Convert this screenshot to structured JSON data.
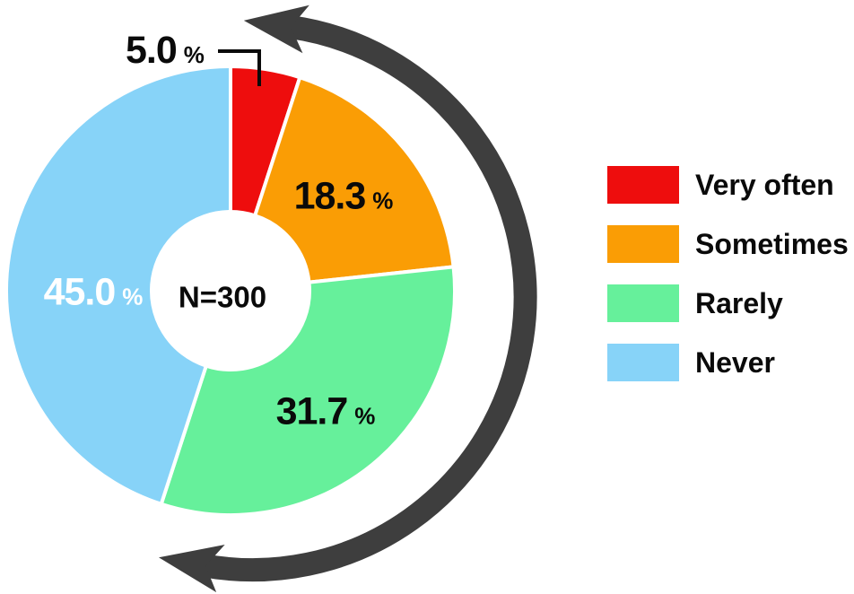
{
  "chart_data": {
    "type": "pie",
    "subtype": "donut",
    "title": "",
    "categories": [
      "Very often",
      "Sometimes",
      "Rarely",
      "Never"
    ],
    "values": [
      5.0,
      18.3,
      31.7,
      45.0
    ],
    "unit_symbol": "%",
    "center_label": "N=300",
    "sample_size": 300,
    "start_angle_deg": 0,
    "direction": "clockwise",
    "legend_position": "right",
    "grid": false,
    "annotations": {
      "callout": "5.0% label placed outside the donut with an elbow leader line into the red slice",
      "arrow": "thick dark-gray double-headed arrow arcing clockwise around the right side of the donut"
    },
    "slices": [
      {
        "label": "Very often",
        "value": 5.0,
        "display": "5.0",
        "color": "#EE0D0D",
        "label_color": "#0A0A0A",
        "label_placement": "outside-top"
      },
      {
        "label": "Sometimes",
        "value": 18.3,
        "display": "18.3",
        "color": "#FA9D05",
        "label_color": "#0A0A0A",
        "label_placement": "inside"
      },
      {
        "label": "Rarely",
        "value": 31.7,
        "display": "31.7",
        "color": "#66F09B",
        "label_color": "#0A0A0A",
        "label_placement": "inside"
      },
      {
        "label": "Never",
        "value": 45.0,
        "display": "45.0",
        "color": "#87D3F8",
        "label_color": "#FFFFFF",
        "label_placement": "inside"
      }
    ],
    "colors": {
      "arrow": "#3E3E3E",
      "leader_line": "#0A0A0A",
      "text": "#0A0A0A",
      "background": "#FFFFFF",
      "slice_separator": "#FFFFFF"
    }
  }
}
